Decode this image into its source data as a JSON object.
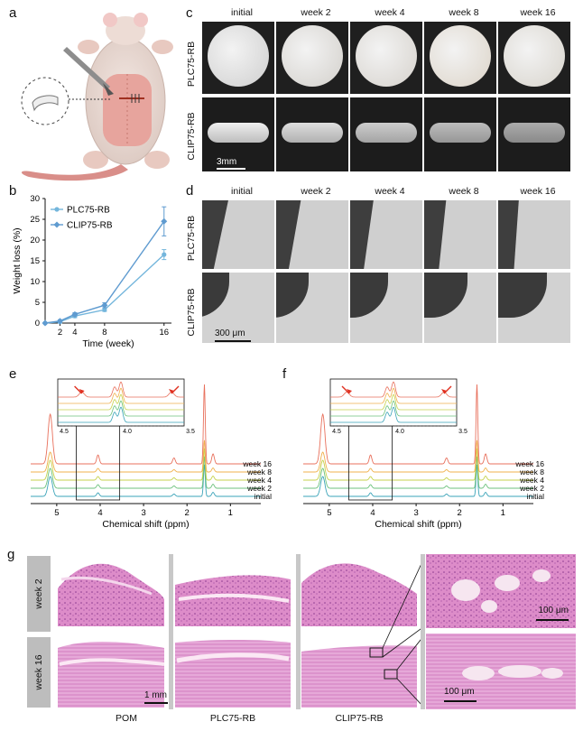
{
  "panels": {
    "a": "a",
    "b": "b",
    "c": "c",
    "d": "d",
    "e": "e",
    "f": "f",
    "g": "g"
  },
  "cd_columns": [
    "initial",
    "week 2",
    "week 4",
    "week 8",
    "week 16"
  ],
  "c": {
    "rows": [
      "PLC75-RB",
      "CLIP75-RB"
    ],
    "scale": "3mm"
  },
  "d": {
    "rows": [
      "PLC75-RB",
      "CLIP75-RB"
    ],
    "scale": "300 μm"
  },
  "chart_data": [
    {
      "type": "line",
      "panel": "b",
      "xlabel": "Time (week)",
      "ylabel": "Weight loss (%)",
      "x": [
        0,
        2,
        4,
        8,
        16
      ],
      "xticks": [
        2,
        4,
        8,
        16
      ],
      "yticks": [
        0,
        5,
        10,
        15,
        20,
        25,
        30
      ],
      "xlim": [
        0,
        17
      ],
      "ylim": [
        0,
        30
      ],
      "series": [
        {
          "name": "PLC75-RB",
          "values": [
            0,
            0.3,
            1.7,
            3.2,
            16.5
          ],
          "err": [
            0,
            0.3,
            0.4,
            0.4,
            1.2
          ],
          "marker": "star",
          "color": "#74b6dc"
        },
        {
          "name": "CLIP75-RB",
          "values": [
            0,
            0.5,
            2.1,
            4.3,
            24.5
          ],
          "err": [
            0,
            0.3,
            0.4,
            0.6,
            3.5
          ],
          "marker": "diamond",
          "color": "#5f9bd0"
        }
      ]
    },
    {
      "type": "line",
      "panel": "e",
      "xlabel": "Chemical shift (ppm)",
      "xticks": [
        5,
        4,
        3,
        2,
        1
      ],
      "xlim": [
        5.6,
        0.3
      ],
      "series": [
        {
          "name": "week 16",
          "color": "#e8705c"
        },
        {
          "name": "week 8",
          "color": "#f0b04c"
        },
        {
          "name": "week 4",
          "color": "#c6d24c"
        },
        {
          "name": "week 2",
          "color": "#6cc27c"
        },
        {
          "name": "initial",
          "color": "#3aa3b8"
        }
      ],
      "inset": {
        "xticks": [
          4.5,
          4.0,
          3.5
        ]
      }
    },
    {
      "type": "line",
      "panel": "f",
      "xlabel": "Chemical shift (ppm)",
      "xticks": [
        5,
        4,
        3,
        2,
        1
      ],
      "xlim": [
        5.6,
        0.3
      ],
      "series": [
        {
          "name": "week 16",
          "color": "#e8705c"
        },
        {
          "name": "week 8",
          "color": "#f0b04c"
        },
        {
          "name": "week 4",
          "color": "#c6d24c"
        },
        {
          "name": "week 2",
          "color": "#6cc27c"
        },
        {
          "name": "initial",
          "color": "#3aa3b8"
        }
      ],
      "inset": {
        "xticks": [
          4.5,
          4.0,
          3.5
        ]
      }
    }
  ],
  "g": {
    "rows": [
      "week 2",
      "week 16"
    ],
    "cols": [
      "POM",
      "PLC75-RB",
      "CLIP75-RB"
    ],
    "scale_main": "1 mm",
    "scale_zoom1": "100 μm",
    "scale_zoom2": "100 μm"
  },
  "colors": {
    "accent": "#5f9bd0",
    "arrow": "#e03020",
    "tissue": "#d77fbf"
  }
}
